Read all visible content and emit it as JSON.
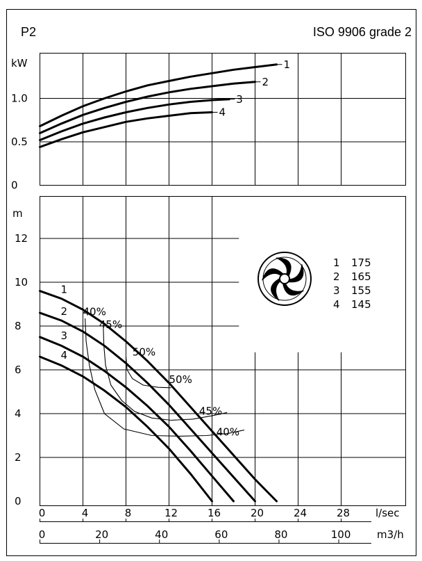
{
  "header": {
    "left_title": "P2",
    "right_title": "ISO 9906 grade 2"
  },
  "legend": {
    "icon": "impeller-icon",
    "entries": [
      {
        "n": "1",
        "d": "175"
      },
      {
        "n": "2",
        "d": "165"
      },
      {
        "n": "3",
        "d": "155"
      },
      {
        "n": "4",
        "d": "145"
      }
    ]
  },
  "x_axis_flow": {
    "unit": "l/sec",
    "ticks": [
      "0",
      "4",
      "8",
      "12",
      "16",
      "20",
      "24",
      "28"
    ]
  },
  "x_axis_volume": {
    "unit": "m3/h",
    "ticks": [
      "0",
      "20",
      "40",
      "60",
      "80",
      "100"
    ]
  },
  "chart_data": [
    {
      "type": "line",
      "title": "",
      "ylabel": "kW",
      "xlabel": "l/sec",
      "xlim": [
        0,
        32
      ],
      "ylim": [
        0,
        1.4
      ],
      "y_ticks": [
        "0",
        "0.5",
        "1.0"
      ],
      "grid": true,
      "series": [
        {
          "name": "1",
          "x": [
            0,
            2,
            4,
            6,
            8,
            10,
            12,
            14,
            16,
            18,
            20,
            22
          ],
          "y": [
            0.68,
            0.8,
            0.91,
            1.0,
            1.08,
            1.15,
            1.2,
            1.25,
            1.29,
            1.33,
            1.36,
            1.39
          ]
        },
        {
          "name": "2",
          "x": [
            0,
            2,
            4,
            6,
            8,
            10,
            12,
            14,
            16,
            18,
            20
          ],
          "y": [
            0.6,
            0.71,
            0.81,
            0.89,
            0.96,
            1.02,
            1.07,
            1.11,
            1.14,
            1.17,
            1.19
          ]
        },
        {
          "name": "3",
          "x": [
            0,
            2,
            4,
            6,
            8,
            10,
            12,
            14,
            16,
            17.6
          ],
          "y": [
            0.52,
            0.62,
            0.71,
            0.78,
            0.84,
            0.89,
            0.93,
            0.96,
            0.98,
            0.99
          ]
        },
        {
          "name": "4",
          "x": [
            0,
            2,
            4,
            6,
            8,
            10,
            12,
            14,
            16
          ],
          "y": [
            0.44,
            0.53,
            0.61,
            0.67,
            0.73,
            0.77,
            0.8,
            0.83,
            0.84
          ]
        }
      ]
    },
    {
      "type": "line",
      "title": "",
      "ylabel": "m",
      "xlabel": "l/sec",
      "xlim": [
        0,
        32
      ],
      "ylim": [
        0,
        13
      ],
      "y_ticks": [
        "0",
        "2",
        "4",
        "6",
        "8",
        "10",
        "12"
      ],
      "grid": true,
      "series": [
        {
          "name": "1",
          "x": [
            0,
            2,
            4,
            6,
            8,
            10,
            12,
            14,
            16,
            18,
            20,
            22
          ],
          "y": [
            9.6,
            9.25,
            8.75,
            8.1,
            7.3,
            6.4,
            5.4,
            4.3,
            3.2,
            2.1,
            1.0,
            0.0
          ]
        },
        {
          "name": "2",
          "x": [
            0,
            2,
            4,
            6,
            8,
            10,
            12,
            14,
            16,
            18,
            20
          ],
          "y": [
            8.6,
            8.25,
            7.75,
            7.1,
            6.3,
            5.4,
            4.4,
            3.3,
            2.2,
            1.1,
            0.0
          ]
        },
        {
          "name": "3",
          "x": [
            0,
            2,
            4,
            6,
            8,
            10,
            12,
            14,
            16,
            18
          ],
          "y": [
            7.5,
            7.1,
            6.6,
            5.95,
            5.2,
            4.35,
            3.4,
            2.3,
            1.15,
            0.0
          ]
        },
        {
          "name": "4",
          "x": [
            0,
            2,
            4,
            6,
            8,
            10,
            12,
            14,
            16
          ],
          "y": [
            6.6,
            6.2,
            5.7,
            5.05,
            4.3,
            3.4,
            2.4,
            1.25,
            0.0
          ]
        }
      ],
      "efficiency_contours": [
        {
          "label": "40%",
          "x": [
            4.2,
            4.3,
            4.6,
            5.1,
            6.0,
            7.8,
            10.4,
            13.0,
            15.5,
            17.5,
            19.0
          ],
          "y": [
            8.35,
            7.3,
            6.2,
            5.1,
            4.0,
            3.3,
            3.0,
            2.97,
            3.0,
            3.1,
            3.25
          ]
        },
        {
          "label": "45%",
          "x": [
            5.9,
            5.95,
            6.1,
            6.6,
            7.6,
            8.8,
            10.4,
            12.2,
            14.2,
            16.0,
            17.4
          ],
          "y": [
            7.9,
            7.1,
            6.2,
            5.3,
            4.6,
            4.1,
            3.8,
            3.7,
            3.75,
            3.9,
            4.05
          ]
        },
        {
          "label": "50%",
          "x": [
            8.0,
            8.1,
            8.6,
            9.6,
            11.0,
            12.2
          ],
          "y": [
            6.6,
            6.0,
            5.6,
            5.3,
            5.2,
            5.18
          ]
        }
      ],
      "efficiency_labels": [
        {
          "text": "40%",
          "x": 4.0,
          "y": 8.5
        },
        {
          "text": "45%",
          "x": 5.5,
          "y": 7.9
        },
        {
          "text": "50%",
          "x": 8.6,
          "y": 6.65
        },
        {
          "text": "50%",
          "x": 12.0,
          "y": 5.4
        },
        {
          "text": "45%",
          "x": 14.8,
          "y": 3.95
        },
        {
          "text": "40%",
          "x": 16.4,
          "y": 3.0
        }
      ]
    }
  ]
}
